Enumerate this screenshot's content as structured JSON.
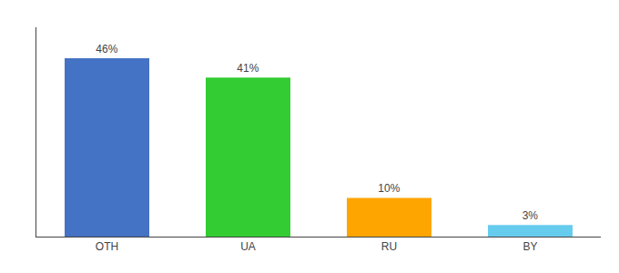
{
  "chart_data": {
    "type": "bar",
    "categories": [
      "OTH",
      "UA",
      "RU",
      "BY"
    ],
    "values": [
      46,
      41,
      10,
      3
    ],
    "value_labels": [
      "46%",
      "41%",
      "10%",
      "3%"
    ],
    "colors": [
      "#4472C4",
      "#33CC33",
      "#FFA500",
      "#66CCEE"
    ],
    "ylim": [
      0,
      54
    ],
    "yticks": [],
    "data_labels": true,
    "tick_labels": "x",
    "grid": false
  }
}
